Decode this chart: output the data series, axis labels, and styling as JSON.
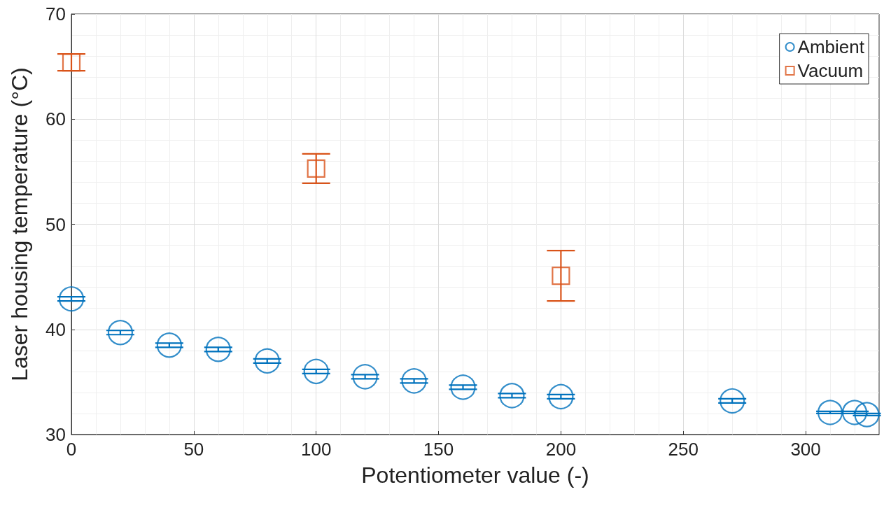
{
  "chart_data": {
    "type": "scatter",
    "xlabel": "Potentiometer value (-)",
    "ylabel": "Laser housing temperature (°C)",
    "xlim": [
      0,
      330
    ],
    "xticks": [
      0,
      50,
      100,
      150,
      200,
      250,
      300
    ],
    "ylim": [
      30,
      70
    ],
    "yticks": [
      30,
      40,
      50,
      60,
      70
    ],
    "grid": true,
    "legend": "top right",
    "series": [
      {
        "name": "Ambient",
        "color": "#0072bd",
        "marker": "circle",
        "x": [
          0,
          20,
          40,
          60,
          80,
          100,
          120,
          140,
          160,
          180,
          200,
          270,
          310,
          320,
          325
        ],
        "values": [
          42.9,
          39.7,
          38.5,
          38.1,
          37.0,
          36.0,
          35.5,
          35.1,
          34.5,
          33.7,
          33.6,
          33.2,
          32.1,
          32.1,
          31.9
        ],
        "errors": [
          0.2,
          0.2,
          0.2,
          0.2,
          0.2,
          0.2,
          0.2,
          0.2,
          0.2,
          0.2,
          0.2,
          0.2,
          0.1,
          0.1,
          0.1
        ]
      },
      {
        "name": "Vacuum",
        "color": "#d95319",
        "marker": "square",
        "x": [
          0,
          100,
          200
        ],
        "values": [
          65.4,
          55.3,
          45.1
        ],
        "errors": [
          0.8,
          1.4,
          2.4
        ]
      }
    ]
  }
}
